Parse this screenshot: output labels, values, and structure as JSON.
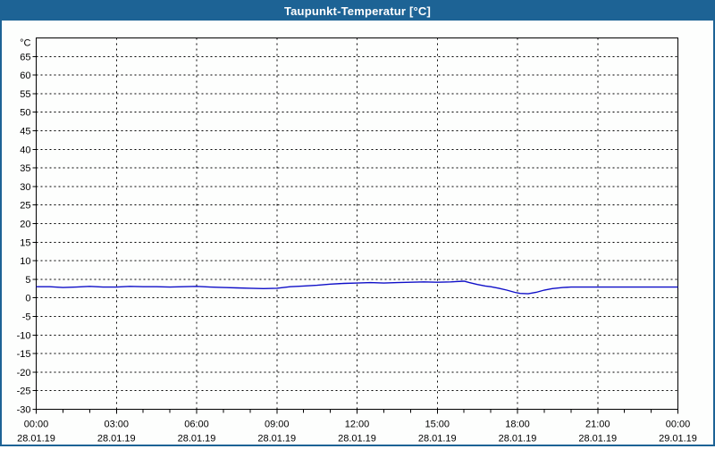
{
  "window": {
    "title": "Taupunkt-Temperatur [°C]"
  },
  "colors": {
    "titlebar_bg": "#1d6395",
    "title_text": "#ffffff",
    "window_border": "#1d6395",
    "plot_background": "#fdfefd",
    "grid": "#000000",
    "line": "#0f0fc8"
  },
  "chart_data": {
    "type": "line",
    "title": "Taupunkt-Temperatur [°C]",
    "unit_label": "°C",
    "ylim": [
      -30,
      70
    ],
    "ytick_step": 5,
    "ytick_labels": [
      65,
      60,
      55,
      50,
      45,
      40,
      35,
      30,
      25,
      20,
      15,
      10,
      5,
      0,
      -5,
      -10,
      -15,
      -20,
      -25,
      -30
    ],
    "x_hours_range": [
      0,
      24
    ],
    "xtick_step_hours": 3,
    "xminor_tick_hours": 1,
    "grid": true,
    "legend_position": "none",
    "xticks": [
      {
        "time": "00:00",
        "date": "28.01.19"
      },
      {
        "time": "03:00",
        "date": "28.01.19"
      },
      {
        "time": "06:00",
        "date": "28.01.19"
      },
      {
        "time": "09:00",
        "date": "28.01.19"
      },
      {
        "time": "12:00",
        "date": "28.01.19"
      },
      {
        "time": "15:00",
        "date": "28.01.19"
      },
      {
        "time": "18:00",
        "date": "28.01.19"
      },
      {
        "time": "21:00",
        "date": "28.01.19"
      },
      {
        "time": "00:00",
        "date": "29.01.19"
      }
    ],
    "series": [
      {
        "name": "Taupunkt-Temperatur",
        "color": "#0f0fc8",
        "points": [
          [
            0,
            3.0
          ],
          [
            0.5,
            3.0
          ],
          [
            1,
            2.8
          ],
          [
            1.5,
            2.9
          ],
          [
            2,
            3.1
          ],
          [
            2.5,
            2.9
          ],
          [
            3,
            2.9
          ],
          [
            3.5,
            3.1
          ],
          [
            4,
            3.0
          ],
          [
            4.5,
            3.0
          ],
          [
            5,
            2.9
          ],
          [
            5.5,
            3.0
          ],
          [
            6,
            3.1
          ],
          [
            6.5,
            2.9
          ],
          [
            7,
            2.8
          ],
          [
            7.5,
            2.7
          ],
          [
            8,
            2.6
          ],
          [
            8.5,
            2.5
          ],
          [
            9,
            2.6
          ],
          [
            9.5,
            3.0
          ],
          [
            10,
            3.2
          ],
          [
            10.5,
            3.4
          ],
          [
            11,
            3.7
          ],
          [
            11.5,
            3.9
          ],
          [
            12,
            4.0
          ],
          [
            12.5,
            4.1
          ],
          [
            13,
            4.0
          ],
          [
            13.5,
            4.1
          ],
          [
            14,
            4.2
          ],
          [
            14.5,
            4.3
          ],
          [
            15,
            4.2
          ],
          [
            15.5,
            4.3
          ],
          [
            16,
            4.5
          ],
          [
            16.2,
            4.1
          ],
          [
            16.5,
            3.6
          ],
          [
            16.8,
            3.2
          ],
          [
            17,
            3.0
          ],
          [
            17.3,
            2.6
          ],
          [
            17.6,
            2.1
          ],
          [
            17.9,
            1.5
          ],
          [
            18.1,
            1.2
          ],
          [
            18.4,
            1.1
          ],
          [
            18.7,
            1.5
          ],
          [
            19,
            2.1
          ],
          [
            19.3,
            2.5
          ],
          [
            19.7,
            2.8
          ],
          [
            20,
            2.9
          ],
          [
            20.5,
            2.9
          ],
          [
            21,
            2.9
          ],
          [
            21.5,
            2.9
          ],
          [
            22,
            2.9
          ],
          [
            22.5,
            2.9
          ],
          [
            23,
            2.9
          ],
          [
            23.5,
            2.9
          ],
          [
            24,
            2.9
          ]
        ]
      }
    ]
  }
}
